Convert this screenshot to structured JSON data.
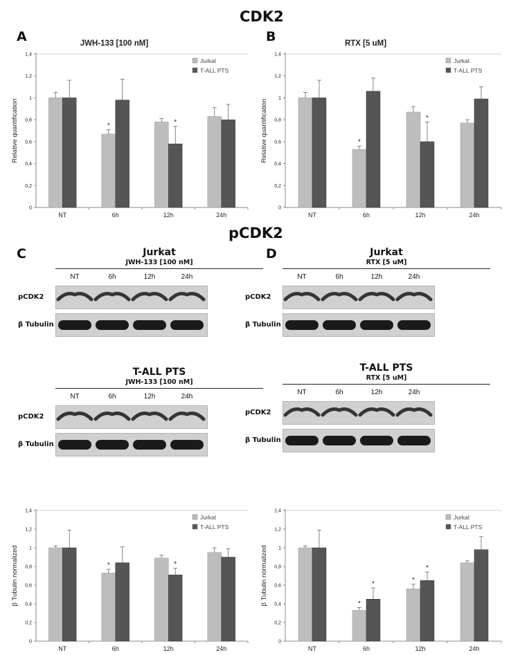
{
  "headings": {
    "cdk2": "CDK2",
    "pcdk2": "pCDK2"
  },
  "panel_letters": {
    "a": "A",
    "b": "B",
    "c": "C",
    "d": "D"
  },
  "colors": {
    "jurkat": "#bdbdbd",
    "tall": "#555555",
    "axis": "#888888",
    "grid": "#cfcfcf",
    "band": "#1a1a1a",
    "membrane": "#d0d0d0"
  },
  "blots": [
    {
      "title": "Jurkat",
      "subtitle": "JWH-133 [100 nM]",
      "lanes": [
        "NT",
        "6h",
        "12h",
        "24h"
      ],
      "rows": [
        {
          "label": "pCDK2",
          "type": "pcdk2"
        },
        {
          "label": "β Tubulin",
          "type": "tubulin"
        }
      ]
    },
    {
      "title": "Jurkat",
      "subtitle": "RTX [5 uM]",
      "lanes": [
        "NT",
        "6h",
        "12h",
        "24h"
      ],
      "rows": [
        {
          "label": "pCDK2",
          "type": "pcdk2"
        },
        {
          "label": "β Tubulin",
          "type": "tubulin"
        }
      ]
    },
    {
      "title": "T-ALL PTS",
      "subtitle": "JWH-133 [100 nM]",
      "lanes": [
        "NT",
        "6h",
        "12h",
        "24h"
      ],
      "rows": [
        {
          "label": "pCDK2",
          "type": "pcdk2"
        },
        {
          "label": "β Tubulin",
          "type": "tubulin"
        }
      ]
    },
    {
      "title": "T-ALL PTS",
      "subtitle": "RTX [5 uM]",
      "lanes": [
        "NT",
        "6h",
        "12h",
        "24h"
      ],
      "rows": [
        {
          "label": "pCDK2",
          "type": "pcdk2"
        },
        {
          "label": "β Tubulin",
          "type": "tubulin"
        }
      ]
    }
  ],
  "chart_data": [
    {
      "type": "bar",
      "title": "JWH-133 [100 nM]",
      "ylabel": "Relative quantification",
      "xlabel": "",
      "categories": [
        "NT",
        "6h",
        "12h",
        "24h"
      ],
      "ylim": [
        0,
        1.4
      ],
      "yticks": [
        "0",
        "0,2",
        "0,4",
        "0,6",
        "0,8",
        "1",
        "1,2",
        "1,4"
      ],
      "grid": "top line only",
      "legend": "top-right",
      "series": [
        {
          "name": "Jurkat",
          "values": [
            1.0,
            0.67,
            0.78,
            0.83
          ],
          "errors": [
            0.05,
            0.04,
            0.03,
            0.08
          ],
          "significant": [
            false,
            true,
            false,
            false
          ]
        },
        {
          "name": "T-ALL PTS",
          "values": [
            1.0,
            0.98,
            0.58,
            0.8
          ],
          "errors": [
            0.16,
            0.19,
            0.16,
            0.14
          ],
          "significant": [
            false,
            false,
            true,
            false
          ]
        }
      ]
    },
    {
      "type": "bar",
      "title": "RTX [5 uM]",
      "ylabel": "Relative quantification",
      "xlabel": "",
      "categories": [
        "NT",
        "6h",
        "12h",
        "24h"
      ],
      "ylim": [
        0,
        1.4
      ],
      "yticks": [
        "0",
        "0,2",
        "0,4",
        "0,6",
        "0,8",
        "1",
        "1,2",
        "1,4"
      ],
      "grid": "top line only",
      "legend": "top-right",
      "series": [
        {
          "name": "Jurkat",
          "values": [
            1.0,
            0.53,
            0.87,
            0.77
          ],
          "errors": [
            0.05,
            0.03,
            0.05,
            0.03
          ],
          "significant": [
            false,
            true,
            false,
            false
          ]
        },
        {
          "name": "T-ALL PTS",
          "values": [
            1.0,
            1.06,
            0.6,
            0.99
          ],
          "errors": [
            0.16,
            0.12,
            0.18,
            0.11
          ],
          "significant": [
            false,
            false,
            true,
            false
          ]
        }
      ]
    },
    {
      "type": "bar",
      "title": "",
      "ylabel": "β Tubulin normalized",
      "xlabel": "",
      "categories": [
        "NT",
        "6h",
        "12h",
        "24h"
      ],
      "ylim": [
        0,
        1.4
      ],
      "yticks": [
        "0",
        "0,2",
        "0,4",
        "0,6",
        "0,8",
        "1",
        "1,2",
        "1,4"
      ],
      "grid": "top line only",
      "legend": "top-right",
      "series": [
        {
          "name": "Jurkat",
          "values": [
            1.0,
            0.73,
            0.89,
            0.95
          ],
          "errors": [
            0.02,
            0.04,
            0.03,
            0.05
          ],
          "significant": [
            false,
            true,
            false,
            false
          ]
        },
        {
          "name": "T-ALL PTS",
          "values": [
            1.0,
            0.84,
            0.71,
            0.9
          ],
          "errors": [
            0.19,
            0.17,
            0.07,
            0.09
          ],
          "significant": [
            false,
            false,
            true,
            false
          ]
        }
      ]
    },
    {
      "type": "bar",
      "title": "",
      "ylabel": "β Tubulin normalized",
      "xlabel": "",
      "categories": [
        "NT",
        "6h",
        "12h",
        "24h"
      ],
      "ylim": [
        0,
        1.4
      ],
      "yticks": [
        "0",
        "0,2",
        "0,4",
        "0,6",
        "0,8",
        "1",
        "1,2",
        "1,4"
      ],
      "grid": "top line only",
      "legend": "top-right",
      "series": [
        {
          "name": "Jurkat",
          "values": [
            1.0,
            0.33,
            0.56,
            0.84
          ],
          "errors": [
            0.02,
            0.03,
            0.05,
            0.02
          ],
          "significant": [
            false,
            true,
            true,
            false
          ]
        },
        {
          "name": "T-ALL PTS",
          "values": [
            1.0,
            0.45,
            0.65,
            0.98
          ],
          "errors": [
            0.19,
            0.12,
            0.09,
            0.14
          ],
          "significant": [
            false,
            true,
            true,
            false
          ]
        }
      ]
    }
  ]
}
